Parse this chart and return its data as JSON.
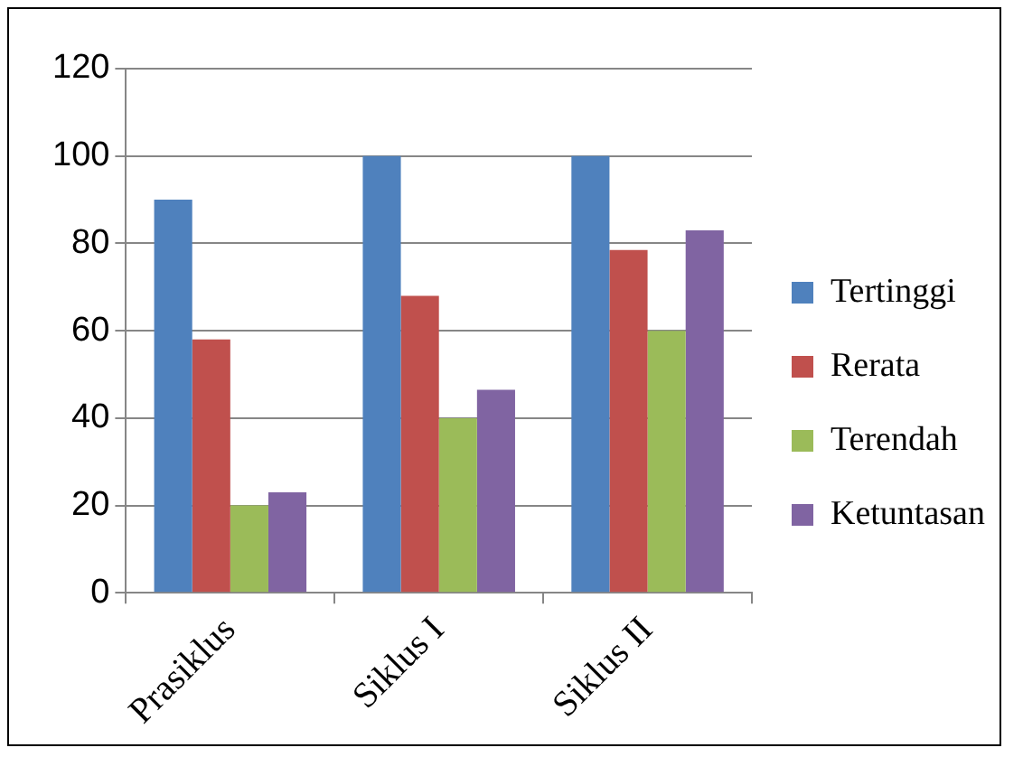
{
  "chart_data": {
    "type": "bar",
    "categories": [
      "Prasiklus",
      "Siklus I",
      "Siklus II"
    ],
    "series": [
      {
        "name": "Tertinggi",
        "color": "#4f81bd",
        "values": [
          90,
          100,
          100
        ]
      },
      {
        "name": "Rerata",
        "color": "#c0504d",
        "values": [
          58,
          68,
          78.5
        ]
      },
      {
        "name": "Terendah",
        "color": "#9bbb59",
        "values": [
          20,
          40,
          60
        ]
      },
      {
        "name": "Ketuntasan",
        "color": "#8064a2",
        "values": [
          23,
          46.5,
          83
        ]
      }
    ],
    "ylim": [
      0,
      120
    ],
    "yticks": [
      0,
      20,
      40,
      60,
      80,
      100,
      120
    ],
    "grid": "y",
    "legend": "right"
  }
}
